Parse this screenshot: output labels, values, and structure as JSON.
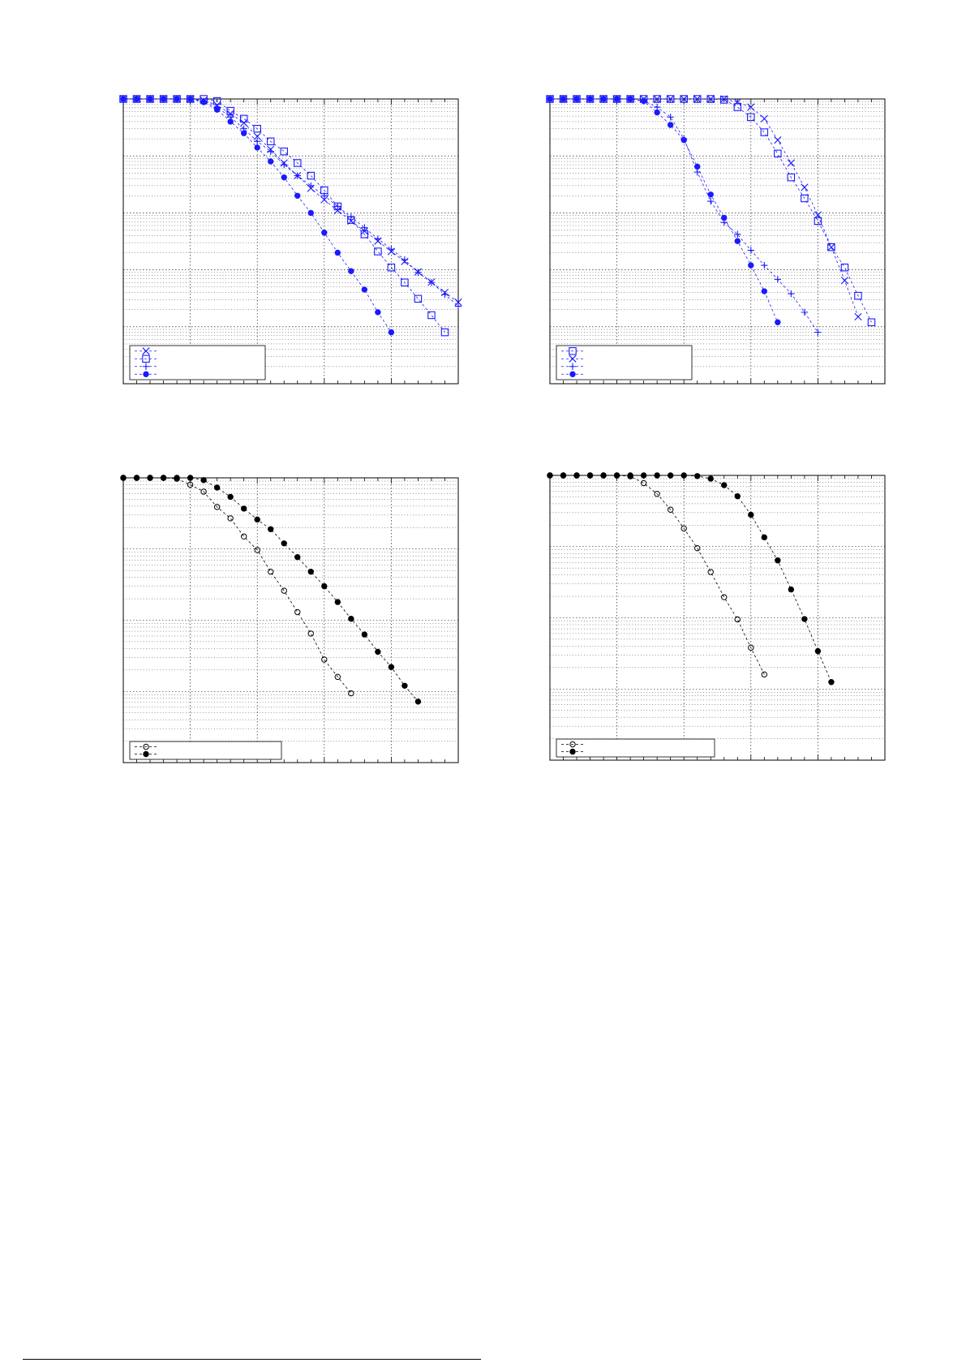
{
  "colors": {
    "blue": "#1a1aff",
    "black": "#000000"
  },
  "chart_data": [
    {
      "type": "line",
      "xscale": "linear",
      "yscale": "log",
      "xlim": [
        0,
        5
      ],
      "ylim": [
        1e-05,
        1
      ],
      "x_major": [
        0,
        1,
        2,
        3,
        4,
        5
      ],
      "grid": true,
      "legend_position": "bottom-left",
      "legend_labels_visible": false,
      "series": [
        {
          "marker": "x",
          "fill": "none",
          "color": "blue",
          "x": [
            0,
            0.2,
            0.4,
            0.6,
            0.8,
            1.0,
            1.2,
            1.4,
            1.6,
            1.8,
            2.0,
            2.2,
            2.4,
            2.6,
            2.8,
            3.0,
            3.2,
            3.4,
            3.6,
            3.8,
            4.0,
            4.2,
            4.4,
            4.6,
            4.8,
            5.0
          ],
          "y": [
            1,
            1,
            1,
            1,
            1,
            1,
            0.95,
            0.78,
            0.55,
            0.38,
            0.22,
            0.13,
            0.075,
            0.045,
            0.027,
            0.017,
            0.011,
            0.0072,
            0.0048,
            0.0032,
            0.0021,
            0.0014,
            0.00092,
            0.00061,
            0.0004,
            0.00027
          ]
        },
        {
          "marker": "square",
          "fill": "none",
          "color": "blue",
          "x": [
            0,
            0.2,
            0.4,
            0.6,
            0.8,
            1.0,
            1.2,
            1.4,
            1.6,
            1.8,
            2.0,
            2.2,
            2.4,
            2.6,
            2.8,
            3.0,
            3.2,
            3.4,
            3.6,
            3.8,
            4.0,
            4.2,
            4.4,
            4.6,
            4.8
          ],
          "y": [
            1,
            1,
            1,
            1,
            1,
            1,
            1,
            0.92,
            0.62,
            0.45,
            0.3,
            0.18,
            0.12,
            0.075,
            0.045,
            0.025,
            0.013,
            0.0075,
            0.0042,
            0.0021,
            0.0011,
            0.0006,
            0.00031,
            0.00016,
            8e-05
          ]
        },
        {
          "marker": "+",
          "fill": "none",
          "color": "blue",
          "x": [
            0,
            0.2,
            0.4,
            0.6,
            0.8,
            1.0,
            1.2,
            1.4,
            1.6,
            1.8,
            2.0,
            2.2,
            2.4,
            2.6,
            2.8,
            3.0,
            3.2,
            3.4,
            3.6,
            3.8,
            4.0,
            4.2,
            4.4,
            4.6,
            4.8,
            5.0
          ],
          "y": [
            1,
            1,
            1,
            1,
            1,
            1,
            0.92,
            0.72,
            0.48,
            0.3,
            0.18,
            0.12,
            0.07,
            0.045,
            0.03,
            0.02,
            0.013,
            0.0085,
            0.0055,
            0.0035,
            0.0023,
            0.0015,
            0.0009,
            0.0006,
            0.00037,
            0.00023
          ]
        },
        {
          "marker": "circle",
          "fill": "solid",
          "color": "blue",
          "x": [
            0,
            0.2,
            0.4,
            0.6,
            0.8,
            1.0,
            1.2,
            1.4,
            1.6,
            1.8,
            2.0,
            2.2,
            2.4,
            2.6,
            2.8,
            3.0,
            3.2,
            3.4,
            3.6,
            3.8,
            4.0
          ],
          "y": [
            1,
            1,
            1,
            1,
            1,
            1,
            0.88,
            0.65,
            0.4,
            0.25,
            0.14,
            0.08,
            0.042,
            0.02,
            0.01,
            0.0045,
            0.002,
            0.00095,
            0.00045,
            0.00018,
            8e-05
          ]
        }
      ]
    },
    {
      "type": "line",
      "xscale": "linear",
      "yscale": "log",
      "xlim": [
        0,
        5
      ],
      "ylim": [
        1e-05,
        1
      ],
      "x_major": [
        0,
        1,
        2,
        3,
        4,
        5
      ],
      "grid": true,
      "legend_position": "bottom-left",
      "legend_labels_visible": false,
      "series": [
        {
          "marker": "square",
          "fill": "none",
          "color": "blue",
          "x": [
            0,
            0.2,
            0.4,
            0.6,
            0.8,
            1.0,
            1.2,
            1.4,
            1.6,
            1.8,
            2.0,
            2.2,
            2.4,
            2.6,
            2.8,
            3.0,
            3.2,
            3.4,
            3.6,
            3.8,
            4.0,
            4.2,
            4.4,
            4.6,
            4.8
          ],
          "y": [
            1,
            1,
            1,
            1,
            1,
            1,
            1,
            1,
            1,
            1,
            1,
            1,
            1,
            0.97,
            0.72,
            0.48,
            0.26,
            0.11,
            0.042,
            0.018,
            0.0072,
            0.0025,
            0.0011,
            0.00035,
            0.00012
          ]
        },
        {
          "marker": "x",
          "fill": "none",
          "color": "blue",
          "x": [
            0,
            0.2,
            0.4,
            0.6,
            0.8,
            1.0,
            1.2,
            1.4,
            1.6,
            1.8,
            2.0,
            2.2,
            2.4,
            2.6,
            2.8,
            3.0,
            3.2,
            3.4,
            3.6,
            3.8,
            4.0,
            4.2,
            4.4,
            4.6
          ],
          "y": [
            1,
            1,
            1,
            1,
            1,
            1,
            1,
            1,
            1,
            1,
            1,
            1,
            1,
            1,
            0.88,
            0.72,
            0.45,
            0.19,
            0.075,
            0.028,
            0.0092,
            0.0025,
            0.00065,
            0.00015
          ]
        },
        {
          "marker": "+",
          "fill": "none",
          "color": "blue",
          "x": [
            0,
            0.2,
            0.4,
            0.6,
            0.8,
            1.0,
            1.2,
            1.4,
            1.6,
            1.8,
            2.0,
            2.2,
            2.4,
            2.6,
            2.8,
            3.0,
            3.2,
            3.4,
            3.6,
            3.8,
            4.0
          ],
          "y": [
            1,
            1,
            1,
            1,
            1,
            1,
            1,
            0.92,
            0.72,
            0.48,
            0.2,
            0.052,
            0.016,
            0.0068,
            0.0042,
            0.0022,
            0.0012,
            0.00068,
            0.00038,
            0.00018,
            8e-05
          ]
        },
        {
          "marker": "circle",
          "fill": "solid",
          "color": "blue",
          "x": [
            0,
            0.2,
            0.4,
            0.6,
            0.8,
            1.0,
            1.2,
            1.4,
            1.6,
            1.8,
            2.0,
            2.2,
            2.4,
            2.6,
            2.8,
            3.0,
            3.2,
            3.4
          ],
          "y": [
            1,
            1,
            1,
            1,
            1,
            1,
            1,
            0.92,
            0.58,
            0.35,
            0.19,
            0.065,
            0.021,
            0.0082,
            0.0032,
            0.0012,
            0.00042,
            0.00012
          ]
        }
      ]
    },
    {
      "type": "line",
      "xscale": "linear",
      "yscale": "log",
      "xlim": [
        0,
        5
      ],
      "ylim": [
        0.0001,
        1
      ],
      "x_major": [
        0,
        1,
        2,
        3,
        4,
        5
      ],
      "grid": true,
      "legend_position": "bottom-left",
      "legend_labels_visible": false,
      "series": [
        {
          "marker": "circle",
          "fill": "none",
          "color": "black",
          "x": [
            0,
            0.2,
            0.4,
            0.6,
            0.8,
            1.0,
            1.2,
            1.4,
            1.6,
            1.8,
            2.0,
            2.2,
            2.4,
            2.6,
            2.8,
            3.0,
            3.2,
            3.4
          ],
          "y": [
            1,
            1,
            1,
            1,
            0.97,
            0.8,
            0.64,
            0.39,
            0.27,
            0.15,
            0.097,
            0.048,
            0.026,
            0.013,
            0.0065,
            0.0028,
            0.0016,
            0.00094
          ]
        },
        {
          "marker": "circle",
          "fill": "solid",
          "color": "black",
          "x": [
            0,
            0.2,
            0.4,
            0.6,
            0.8,
            1.0,
            1.2,
            1.4,
            1.6,
            1.8,
            2.0,
            2.2,
            2.4,
            2.6,
            2.8,
            3.0,
            3.2,
            3.4,
            3.6,
            3.8,
            4.0,
            4.2,
            4.4
          ],
          "y": [
            1,
            1,
            1,
            1,
            1,
            1,
            0.93,
            0.73,
            0.54,
            0.37,
            0.26,
            0.19,
            0.12,
            0.077,
            0.048,
            0.03,
            0.018,
            0.0105,
            0.0063,
            0.0036,
            0.0022,
            0.0012,
            0.00072
          ]
        }
      ]
    },
    {
      "type": "line",
      "xscale": "linear",
      "yscale": "log",
      "xlim": [
        0,
        5
      ],
      "ylim": [
        0.0001,
        1
      ],
      "x_major": [
        0,
        1,
        2,
        3,
        4,
        5
      ],
      "grid": true,
      "legend_position": "bottom-left",
      "legend_labels_visible": false,
      "series": [
        {
          "marker": "circle",
          "fill": "none",
          "color": "black",
          "x": [
            0,
            0.2,
            0.4,
            0.6,
            0.8,
            1.0,
            1.2,
            1.4,
            1.6,
            1.8,
            2.0,
            2.2,
            2.4,
            2.6,
            2.8,
            3.0,
            3.2
          ],
          "y": [
            1,
            1,
            1,
            1,
            1,
            1,
            0.97,
            0.78,
            0.55,
            0.33,
            0.18,
            0.095,
            0.044,
            0.0195,
            0.0095,
            0.0038,
            0.0016
          ]
        },
        {
          "marker": "circle",
          "fill": "solid",
          "color": "black",
          "x": [
            0,
            0.2,
            0.4,
            0.6,
            0.8,
            1.0,
            1.2,
            1.4,
            1.6,
            1.8,
            2.0,
            2.2,
            2.4,
            2.6,
            2.8,
            3.0,
            3.2,
            3.4,
            3.6,
            3.8,
            4.0,
            4.2
          ],
          "y": [
            1,
            1,
            1,
            1,
            1,
            1,
            1,
            1,
            1,
            1,
            1,
            0.98,
            0.9,
            0.73,
            0.51,
            0.28,
            0.135,
            0.064,
            0.025,
            0.0096,
            0.0034,
            0.00125
          ]
        }
      ]
    }
  ]
}
